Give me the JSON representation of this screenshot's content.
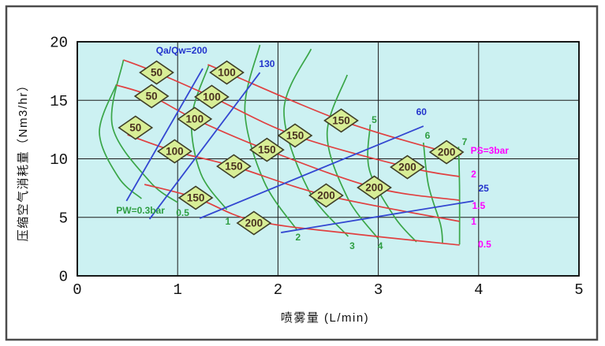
{
  "window": {
    "background": "#ffffff",
    "frame_color": "#4c4c4c"
  },
  "chart_data": {
    "type": "line",
    "title": "",
    "xlabel": "喷雾量 (L/min)",
    "ylabel": "压缩空气消耗量（Nm3/hr）",
    "xlim": [
      0,
      5
    ],
    "ylim": [
      0,
      20
    ],
    "x_ticks": [
      "0",
      "1",
      "2",
      "3",
      "4",
      "5"
    ],
    "y_ticks": [
      "0",
      "5",
      "10",
      "15",
      "20"
    ],
    "grid": true,
    "plot_bg": "#ccf1f2",
    "colors": {
      "air_pressure_red": "#e04040",
      "water_pressure_green": "#3aa648",
      "ratio_blue": "#3347d1",
      "label_magenta": "#ff00ff",
      "label_blue": "#2233cc",
      "label_green": "#2e9e42",
      "grid_black": "#1a1a1a"
    },
    "series": [
      {
        "name": "PS=3bar",
        "family": "air-pressure",
        "color_role": "air_pressure_red",
        "points": [
          [
            1.3,
            18.05
          ],
          [
            1.49,
            17.37
          ],
          [
            2.63,
            13.27
          ],
          [
            3.68,
            10.57
          ],
          [
            3.83,
            10.51
          ]
        ]
      },
      {
        "name": "PS=2bar",
        "family": "air-pressure",
        "color_role": "air_pressure_red",
        "points": [
          [
            0.46,
            18.45
          ],
          [
            0.79,
            17.37
          ],
          [
            1.34,
            15.29
          ],
          [
            2.17,
            11.99
          ],
          [
            3.29,
            9.29
          ],
          [
            3.81,
            8.48
          ]
        ]
      },
      {
        "name": "PS=1.5bar",
        "family": "air-pressure",
        "color_role": "air_pressure_red",
        "points": [
          [
            0.39,
            16.3
          ],
          [
            0.74,
            15.35
          ],
          [
            1.17,
            13.4
          ],
          [
            1.89,
            10.77
          ],
          [
            2.96,
            7.54
          ],
          [
            3.81,
            6.46
          ]
        ]
      },
      {
        "name": "PS=1bar",
        "family": "air-pressure",
        "color_role": "air_pressure_red",
        "points": [
          [
            0.5,
            12.05
          ],
          [
            0.97,
            10.64
          ],
          [
            1.56,
            9.36
          ],
          [
            2.48,
            6.87
          ],
          [
            3.81,
            4.65
          ]
        ]
      },
      {
        "name": "PS=0.5bar",
        "family": "air-pressure",
        "color_role": "air_pressure_red",
        "points": [
          [
            0.67,
            7.81
          ],
          [
            1.18,
            6.67
          ],
          [
            1.76,
            4.71
          ],
          [
            2.77,
            3.57
          ],
          [
            3.81,
            2.63
          ]
        ]
      },
      {
        "name": "PW=0.3bar",
        "family": "water-pressure",
        "color_role": "water_pressure_green",
        "points": [
          [
            0.39,
            16.36
          ],
          [
            0.22,
            12.26
          ],
          [
            0.41,
            8.42
          ],
          [
            0.64,
            6.6
          ]
        ]
      },
      {
        "name": "PW=0.5bar",
        "family": "water-pressure",
        "color_role": "water_pressure_green",
        "points": [
          [
            0.46,
            18.45
          ],
          [
            0.35,
            12.79
          ],
          [
            0.72,
            8.08
          ],
          [
            1.0,
            6.26
          ]
        ]
      },
      {
        "name": "PW=1bar",
        "family": "water-pressure",
        "color_role": "water_pressure_green",
        "points": [
          [
            1.31,
            17.98
          ],
          [
            1.14,
            13.47
          ],
          [
            1.23,
            8.75
          ],
          [
            1.49,
            5.66
          ]
        ]
      },
      {
        "name": "PW=2bar",
        "family": "water-pressure",
        "color_role": "water_pressure_green",
        "points": [
          [
            1.82,
            19.73
          ],
          [
            1.67,
            14.14
          ],
          [
            1.86,
            8.08
          ],
          [
            2.19,
            3.91
          ]
        ]
      },
      {
        "name": "PW=3bar",
        "family": "water-pressure",
        "color_role": "water_pressure_green",
        "points": [
          [
            2.33,
            19.39
          ],
          [
            2.06,
            14.14
          ],
          [
            2.3,
            7.41
          ],
          [
            2.7,
            3.37
          ]
        ]
      },
      {
        "name": "PW=4bar",
        "family": "water-pressure",
        "color_role": "water_pressure_green",
        "points": [
          [
            2.69,
            17.17
          ],
          [
            2.49,
            12.12
          ],
          [
            2.69,
            6.73
          ],
          [
            3.0,
            3.16
          ]
        ]
      },
      {
        "name": "PW=5bar",
        "family": "water-pressure",
        "color_role": "water_pressure_green",
        "points": [
          [
            2.92,
            12.93
          ],
          [
            2.91,
            9.09
          ],
          [
            3.16,
            5.05
          ],
          [
            3.38,
            2.9
          ]
        ]
      },
      {
        "name": "PW=6bar",
        "family": "water-pressure",
        "color_role": "water_pressure_green",
        "points": [
          [
            3.45,
            11.38
          ],
          [
            3.5,
            7.74
          ],
          [
            3.62,
            4.38
          ],
          [
            3.64,
            2.83
          ]
        ]
      },
      {
        "name": "PW=7bar",
        "family": "water-pressure",
        "color_role": "water_pressure_green",
        "points": [
          [
            3.8,
            11.04
          ],
          [
            3.81,
            7.41
          ],
          [
            3.81,
            2.69
          ]
        ]
      },
      {
        "name": "Qa/Qw=200",
        "family": "air-water-ratio",
        "color_role": "ratio_blue",
        "points": [
          [
            0.49,
            6.4
          ],
          [
            1.25,
            17.71
          ]
        ]
      },
      {
        "name": "Qa/Qw=130",
        "family": "air-water-ratio",
        "color_role": "ratio_blue",
        "points": [
          [
            0.72,
            4.85
          ],
          [
            1.82,
            17.37
          ]
        ]
      },
      {
        "name": "Qa/Qw=60",
        "family": "air-water-ratio",
        "color_role": "ratio_blue",
        "points": [
          [
            1.22,
            4.92
          ],
          [
            3.45,
            12.79
          ]
        ]
      },
      {
        "name": "Qa/Qw=25",
        "family": "air-water-ratio",
        "color_role": "ratio_blue",
        "points": [
          [
            2.03,
            3.7
          ],
          [
            3.95,
            6.4
          ]
        ]
      }
    ],
    "markers": [
      {
        "label": "50",
        "x": 0.79,
        "y": 17.37
      },
      {
        "label": "50",
        "x": 0.74,
        "y": 15.35
      },
      {
        "label": "50",
        "x": 0.58,
        "y": 12.66
      },
      {
        "label": "100",
        "x": 1.49,
        "y": 17.37
      },
      {
        "label": "100",
        "x": 1.34,
        "y": 15.29
      },
      {
        "label": "100",
        "x": 1.17,
        "y": 13.4
      },
      {
        "label": "100",
        "x": 0.97,
        "y": 10.64
      },
      {
        "label": "150",
        "x": 2.63,
        "y": 13.27
      },
      {
        "label": "150",
        "x": 2.17,
        "y": 11.99
      },
      {
        "label": "150",
        "x": 1.89,
        "y": 10.77
      },
      {
        "label": "150",
        "x": 1.56,
        "y": 9.36
      },
      {
        "label": "150",
        "x": 1.18,
        "y": 6.67
      },
      {
        "label": "200",
        "x": 3.68,
        "y": 10.57
      },
      {
        "label": "200",
        "x": 3.29,
        "y": 9.29
      },
      {
        "label": "200",
        "x": 2.96,
        "y": 7.54
      },
      {
        "label": "200",
        "x": 2.48,
        "y": 6.87
      },
      {
        "label": "200",
        "x": 1.76,
        "y": 4.51
      }
    ],
    "marker_style": {
      "fill": "#d8ee96",
      "stroke": "#3f3f28",
      "text_color": "#4a3220"
    },
    "annotations": [
      {
        "text": "Qa/Qw=200",
        "x": 1.04,
        "y": 19.26,
        "color_role": "label_blue"
      },
      {
        "text": "130",
        "x": 1.89,
        "y": 18.12,
        "color_role": "label_blue"
      },
      {
        "text": "60",
        "x": 3.43,
        "y": 14.01,
        "color_role": "label_blue"
      },
      {
        "text": "25",
        "x": 4.05,
        "y": 7.47,
        "color_role": "label_blue"
      },
      {
        "text": "PS=3bar",
        "x": 4.11,
        "y": 10.71,
        "color_role": "label_magenta"
      },
      {
        "text": "2",
        "x": 3.95,
        "y": 8.69,
        "color_role": "label_magenta"
      },
      {
        "text": "1.5",
        "x": 4.0,
        "y": 5.99,
        "color_role": "label_magenta"
      },
      {
        "text": "1",
        "x": 3.95,
        "y": 4.65,
        "color_role": "label_magenta"
      },
      {
        "text": "0.5",
        "x": 4.06,
        "y": 2.69,
        "color_role": "label_magenta"
      },
      {
        "text": "PW=0.3bar",
        "x": 0.63,
        "y": 5.59,
        "color_role": "label_green"
      },
      {
        "text": "0.5",
        "x": 1.05,
        "y": 5.39,
        "color_role": "label_green"
      },
      {
        "text": "1",
        "x": 1.5,
        "y": 4.65,
        "color_role": "label_green"
      },
      {
        "text": "2",
        "x": 2.2,
        "y": 3.3,
        "color_role": "label_green"
      },
      {
        "text": "3",
        "x": 2.74,
        "y": 2.56,
        "color_role": "label_green"
      },
      {
        "text": "4",
        "x": 3.02,
        "y": 2.56,
        "color_role": "label_green"
      },
      {
        "text": "5",
        "x": 2.96,
        "y": 13.33,
        "color_role": "label_green"
      },
      {
        "text": "6",
        "x": 3.49,
        "y": 11.99,
        "color_role": "label_green"
      },
      {
        "text": "7",
        "x": 3.86,
        "y": 11.45,
        "color_role": "label_green"
      }
    ]
  }
}
